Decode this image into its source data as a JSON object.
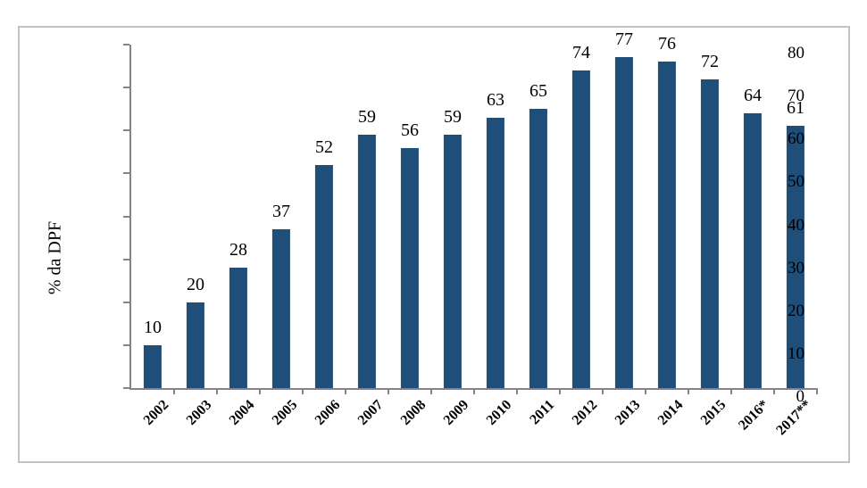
{
  "chart_data": {
    "type": "bar",
    "categories": [
      "2002",
      "2003",
      "2004",
      "2005",
      "2006",
      "2007",
      "2008",
      "2009",
      "2010",
      "2011",
      "2012",
      "2013",
      "2014",
      "2015",
      "2016*",
      "2017**"
    ],
    "values": [
      10,
      20,
      28,
      37,
      52,
      59,
      56,
      59,
      63,
      65,
      74,
      77,
      76,
      72,
      64,
      61
    ],
    "title": "",
    "xlabel": "",
    "ylabel": "% da DPF",
    "ylim": [
      0,
      80
    ],
    "ytick_step": 10,
    "yticks": [
      0,
      10,
      20,
      30,
      40,
      50,
      60,
      70,
      80
    ],
    "grid": false,
    "legend_position": "none",
    "bar_color": "#1F4E79",
    "axis_color": "#848484",
    "frame_border_color": "#C3C3C3",
    "text_color": "#000000",
    "background_color": "#FFFFFF"
  }
}
